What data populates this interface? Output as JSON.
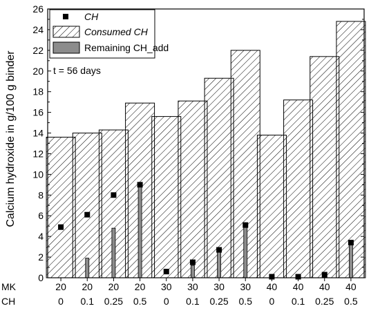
{
  "chart_data": {
    "type": "bar",
    "ylabel": "Calcium hydroxide in g/100 g binder",
    "ylim": [
      0,
      26
    ],
    "y_ticks": [
      0,
      2,
      4,
      6,
      8,
      10,
      12,
      14,
      16,
      18,
      20,
      22,
      24,
      26
    ],
    "annotation": "t = 56 days",
    "row_labels": {
      "mk": "MK",
      "ch": "CH"
    },
    "categories": [
      {
        "mk": "20",
        "ch": "0"
      },
      {
        "mk": "20",
        "ch": "0.1"
      },
      {
        "mk": "20",
        "ch": "0.25"
      },
      {
        "mk": "20",
        "ch": "0.5"
      },
      {
        "mk": "30",
        "ch": "0"
      },
      {
        "mk": "30",
        "ch": "0.1"
      },
      {
        "mk": "30",
        "ch": "0.25"
      },
      {
        "mk": "30",
        "ch": "0.5"
      },
      {
        "mk": "40",
        "ch": "0"
      },
      {
        "mk": "40",
        "ch": "0.1"
      },
      {
        "mk": "40",
        "ch": "0.25"
      },
      {
        "mk": "40",
        "ch": "0.5"
      }
    ],
    "series": [
      {
        "name": "CH",
        "kind": "marker",
        "color": "#000000",
        "values": [
          4.9,
          6.1,
          8.0,
          9.0,
          0.6,
          1.5,
          2.7,
          5.1,
          0.1,
          0.1,
          0.3,
          3.4
        ]
      },
      {
        "name": "Consumed CH",
        "kind": "hatched-bar",
        "color": "#000000",
        "values": [
          13.6,
          14.0,
          14.3,
          16.9,
          15.6,
          17.1,
          19.3,
          22.0,
          13.8,
          17.2,
          21.4,
          24.8
        ]
      },
      {
        "name": "Remaining CH_add",
        "kind": "gray-bar",
        "color": "#8c8c8c",
        "values": [
          0,
          1.9,
          4.8,
          9.0,
          0,
          1.2,
          2.6,
          5.0,
          0,
          0,
          0,
          3.4
        ]
      }
    ],
    "legend_position": "top-left"
  }
}
